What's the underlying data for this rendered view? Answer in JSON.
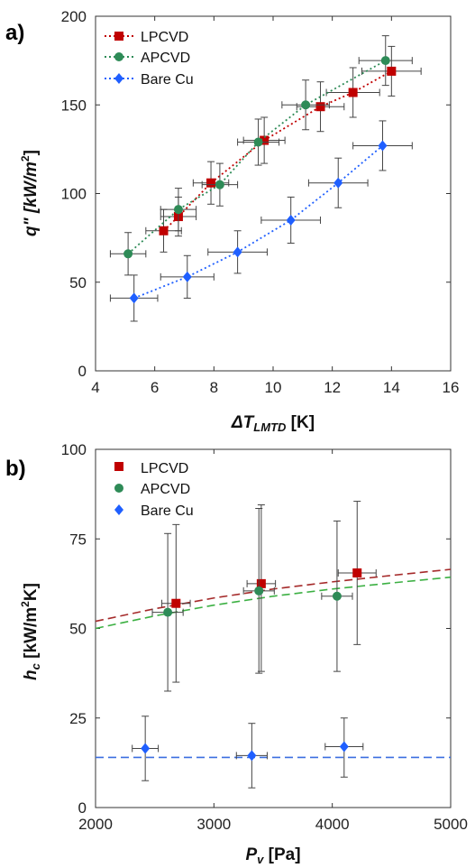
{
  "colors": {
    "LPCVD": "#c00000",
    "APCVD": "#2e8b57",
    "Bare Cu": "#1f5fff",
    "LPCVD_fit": "#a52a2a",
    "APCVD_fit": "#3cb043",
    "Bare Cu_fit": "#3b6fe0"
  },
  "chart_data": [
    {
      "panel_label": "a)",
      "type": "scatter",
      "xlabel_main": "ΔT",
      "xlabel_sub": "LMTD",
      "xlabel_unit": " [K]",
      "ylabel_main": "q\" [kW/m",
      "ylabel_sup": "2",
      "ylabel_end": "]",
      "xlim": [
        4,
        16
      ],
      "ylim": [
        0,
        200
      ],
      "xticks": [
        4,
        6,
        8,
        10,
        12,
        14,
        16
      ],
      "yticks": [
        0,
        50,
        100,
        150,
        200
      ],
      "legend_position": "top-left",
      "series": [
        {
          "name": "LPCVD",
          "marker": "square",
          "line": "dotted",
          "x": [
            6.3,
            6.8,
            7.9,
            9.7,
            11.6,
            12.7,
            14.0
          ],
          "y": [
            79,
            87,
            106,
            130,
            149,
            157,
            169
          ],
          "xerr": [
            0.6,
            0.6,
            0.6,
            0.7,
            0.8,
            0.9,
            1.0
          ],
          "yerr": [
            12,
            11,
            12,
            13,
            14,
            14,
            14
          ]
        },
        {
          "name": "APCVD",
          "marker": "circle",
          "line": "dotted",
          "x": [
            5.1,
            6.8,
            8.2,
            9.5,
            11.1,
            13.8
          ],
          "y": [
            66,
            91,
            105,
            129,
            150,
            175
          ],
          "xerr": [
            0.6,
            0.6,
            0.6,
            0.7,
            0.8,
            0.9
          ],
          "yerr": [
            12,
            12,
            12,
            13,
            14,
            14
          ]
        },
        {
          "name": "Bare Cu",
          "marker": "diamond",
          "line": "dotted",
          "x": [
            5.3,
            7.1,
            8.8,
            10.6,
            12.2,
            13.7
          ],
          "y": [
            41,
            53,
            67,
            85,
            106,
            127
          ],
          "xerr": [
            0.8,
            0.9,
            1.0,
            1.0,
            1.0,
            1.0
          ],
          "yerr": [
            13,
            12,
            12,
            13,
            14,
            14
          ]
        }
      ]
    },
    {
      "panel_label": "b)",
      "type": "scatter",
      "xlabel_main": "P",
      "xlabel_sub": "v",
      "xlabel_unit": " [Pa]",
      "ylabel_main": "h",
      "ylabel_sub": "c",
      "ylabel_mid": " [kW/m",
      "ylabel_sup": "2",
      "ylabel_end": "K]",
      "xlim": [
        2000,
        5000
      ],
      "ylim": [
        0,
        100
      ],
      "xticks": [
        2000,
        3000,
        4000,
        5000
      ],
      "yticks": [
        0,
        25,
        50,
        75,
        100
      ],
      "legend_position": "top-left",
      "series": [
        {
          "name": "LPCVD",
          "marker": "square",
          "x": [
            2680,
            3400,
            4210
          ],
          "y": [
            57,
            62.5,
            65.5
          ],
          "xerr": [
            120,
            120,
            160
          ],
          "ylow": [
            35,
            38,
            45.5
          ],
          "yhigh": [
            79,
            84.5,
            85.5
          ]
        },
        {
          "name": "APCVD",
          "marker": "circle",
          "x": [
            2610,
            3380,
            4040
          ],
          "y": [
            54.5,
            60.5,
            59
          ],
          "xerr": [
            130,
            130,
            130
          ],
          "ylow": [
            32.5,
            37.5,
            38
          ],
          "yhigh": [
            76.5,
            83.5,
            80
          ]
        },
        {
          "name": "Bare Cu",
          "marker": "diamond",
          "x": [
            2420,
            3320,
            4100
          ],
          "y": [
            16.5,
            14.5,
            17
          ],
          "xerr": [
            110,
            130,
            160
          ],
          "ylow": [
            7.5,
            5.5,
            8.5
          ],
          "yhigh": [
            25.5,
            23.5,
            25
          ]
        }
      ],
      "fits": [
        {
          "series": "LPCVD",
          "x": [
            2000,
            2500,
            3000,
            3500,
            4000,
            4500,
            5000
          ],
          "y": [
            52,
            55.5,
            58.5,
            61,
            63,
            64.8,
            66.5
          ]
        },
        {
          "series": "APCVD",
          "x": [
            2000,
            2500,
            3000,
            3500,
            4000,
            4500,
            5000
          ],
          "y": [
            50,
            53.5,
            56.5,
            59,
            61,
            62.7,
            64.3
          ]
        },
        {
          "series": "Bare Cu",
          "x": [
            2000,
            5000
          ],
          "y": [
            14,
            14
          ]
        }
      ]
    }
  ]
}
